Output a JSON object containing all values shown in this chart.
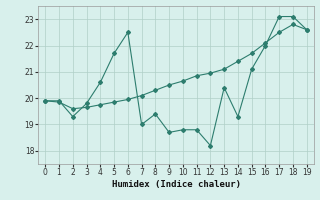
{
  "x": [
    0,
    1,
    2,
    3,
    4,
    5,
    6,
    7,
    8,
    9,
    10,
    11,
    12,
    13,
    14,
    15,
    16,
    17,
    18,
    19
  ],
  "line1": [
    19.9,
    19.9,
    19.3,
    19.8,
    20.6,
    21.7,
    22.5,
    19.0,
    19.4,
    18.7,
    18.8,
    18.8,
    18.2,
    20.4,
    19.3,
    21.1,
    22.0,
    23.1,
    23.1,
    22.6
  ],
  "line2": [
    19.9,
    19.85,
    19.6,
    19.65,
    19.75,
    19.85,
    19.95,
    20.1,
    20.3,
    20.5,
    20.65,
    20.85,
    20.95,
    21.1,
    21.4,
    21.7,
    22.1,
    22.5,
    22.8,
    22.6
  ],
  "xlabel": "Humidex (Indice chaleur)",
  "ylim": [
    17.5,
    23.5
  ],
  "xlim": [
    -0.5,
    19.5
  ],
  "yticks": [
    18,
    19,
    20,
    21,
    22,
    23
  ],
  "xticks": [
    0,
    1,
    2,
    3,
    4,
    5,
    6,
    7,
    8,
    9,
    10,
    11,
    12,
    13,
    14,
    15,
    16,
    17,
    18,
    19
  ],
  "line_color": "#2d7d6e",
  "bg_color": "#d8f0ec",
  "grid_color": "#b0cfc8"
}
